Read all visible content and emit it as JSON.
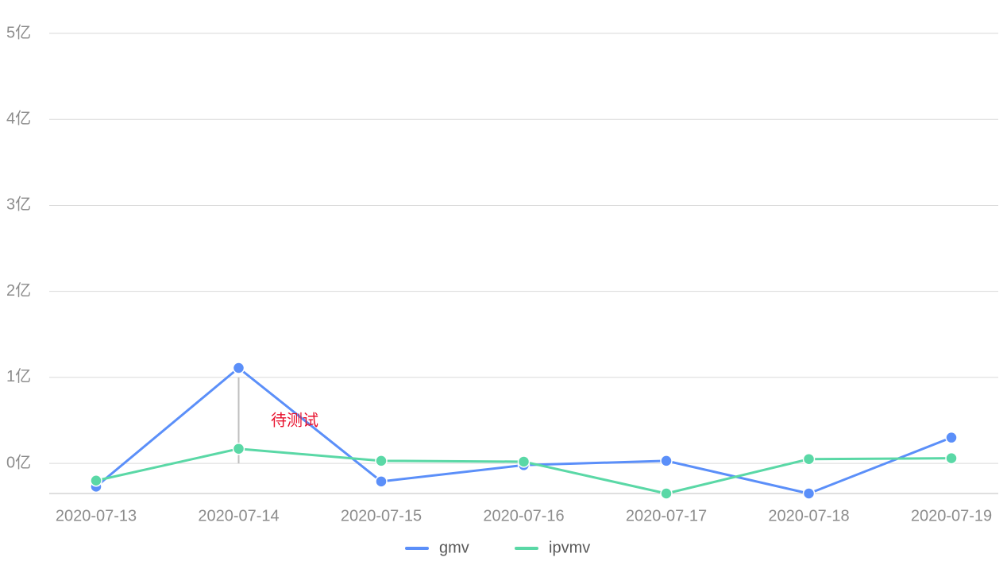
{
  "chart_data": {
    "type": "line",
    "categories": [
      "2020-07-13",
      "2020-07-14",
      "2020-07-15",
      "2020-07-16",
      "2020-07-17",
      "2020-07-18",
      "2020-07-19"
    ],
    "series": [
      {
        "name": "gmv",
        "color": "#5b8ff9",
        "values": [
          -0.27,
          1.11,
          -0.21,
          -0.02,
          0.03,
          -0.35,
          0.3
        ]
      },
      {
        "name": "ipvmv",
        "color": "#5ad8a6",
        "values": [
          -0.2,
          0.17,
          0.03,
          0.02,
          -0.35,
          0.05,
          0.06
        ]
      }
    ],
    "ylim": [
      -0.35,
      5
    ],
    "yticks": [
      {
        "value": 0,
        "label": "0亿"
      },
      {
        "value": 1,
        "label": "1亿"
      },
      {
        "value": 2,
        "label": "2亿"
      },
      {
        "value": 3,
        "label": "3亿"
      },
      {
        "value": 4,
        "label": "4亿"
      },
      {
        "value": 5,
        "label": "5亿"
      }
    ],
    "grid": true,
    "annotation": "待测试",
    "legend": "bottom"
  }
}
